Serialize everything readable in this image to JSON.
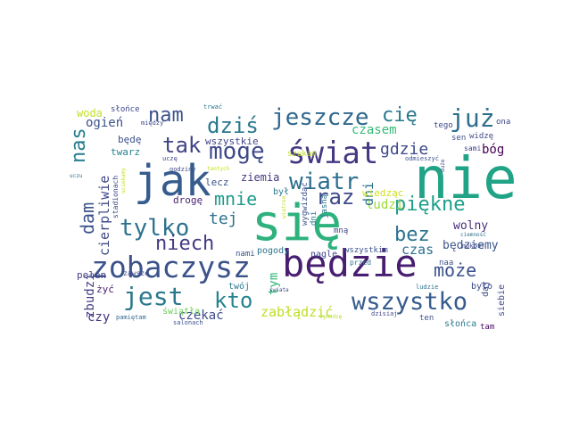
{
  "words": [
    {
      "text": "nie",
      "color": "#20a386"
    },
    {
      "text": "się",
      "color": "#2db27d"
    },
    {
      "text": "jak",
      "color": "#365c8d"
    },
    {
      "text": "będzie",
      "color": "#481f70"
    },
    {
      "text": "zobaczysz",
      "color": "#3b528b"
    },
    {
      "text": "świat",
      "color": "#453781"
    },
    {
      "text": "jeszcze",
      "color": "#31688e"
    },
    {
      "text": "wszystko",
      "color": "#365c8d"
    },
    {
      "text": "już",
      "color": "#2e6f8e"
    },
    {
      "text": "tylko",
      "color": "#2c728e"
    },
    {
      "text": "mogę",
      "color": "#3e4989"
    },
    {
      "text": "jest",
      "color": "#2a788e"
    },
    {
      "text": "dziś",
      "color": "#2a788e"
    },
    {
      "text": "wiatr",
      "color": "#2e6f8e"
    },
    {
      "text": "niech",
      "color": "#443983"
    },
    {
      "text": "piękne",
      "color": "#1f9e89"
    },
    {
      "text": "kto",
      "color": "#25838e"
    },
    {
      "text": "tak",
      "color": "#414487"
    },
    {
      "text": "nam",
      "color": "#3b528b"
    },
    {
      "text": "może",
      "color": "#3b528b"
    },
    {
      "text": "bez",
      "color": "#2c728e"
    },
    {
      "text": "gdzie",
      "color": "#3e4989"
    },
    {
      "text": "cię",
      "color": "#2a788e"
    },
    {
      "text": "raz",
      "color": "#3e4989"
    },
    {
      "text": "mnie",
      "color": "#1e9b8a"
    },
    {
      "text": "nas",
      "color": "#287d8e"
    },
    {
      "text": "dam",
      "color": "#3b528b"
    },
    {
      "text": "tej",
      "color": "#2c728e"
    },
    {
      "text": "zabłądzić",
      "color": "#bddf26"
    },
    {
      "text": "czasem",
      "color": "#38b977"
    },
    {
      "text": "cierpliwie",
      "color": "#3e4989"
    },
    {
      "text": "ludzi",
      "color": "#a0da39"
    },
    {
      "text": "czekać",
      "color": "#3e4989"
    },
    {
      "text": "czas",
      "color": "#2e6f8e"
    },
    {
      "text": "będziemy",
      "color": "#39568c"
    },
    {
      "text": "wolny",
      "color": "#472d7b"
    },
    {
      "text": "ogień",
      "color": "#3b528b"
    },
    {
      "text": "dni",
      "color": "#2c728e"
    },
    {
      "text": "tym",
      "color": "#32b67a"
    },
    {
      "text": "bóg",
      "color": "#440154"
    },
    {
      "text": "zbudzi",
      "color": "#433e85"
    },
    {
      "text": "czy",
      "color": "#46327e"
    },
    {
      "text": "woda",
      "color": "#c2df23"
    },
    {
      "text": "twarz",
      "color": "#26828e"
    },
    {
      "text": "będę",
      "color": "#3b528b"
    },
    {
      "text": "pełen",
      "color": "#433e85"
    },
    {
      "text": "ziemia",
      "color": "#453781"
    },
    {
      "text": "drogę",
      "color": "#481f70"
    },
    {
      "text": "lecz",
      "color": "#3b528b"
    },
    {
      "text": "wszystkie",
      "color": "#404688"
    },
    {
      "text": "słońca",
      "color": "#2a788e"
    },
    {
      "text": "żyć",
      "color": "#481f70"
    },
    {
      "text": "było",
      "color": "#3e4989"
    },
    {
      "text": "świątła",
      "color": "#6ccd5a"
    },
    {
      "text": "wiedząc",
      "color": "#d0e11c"
    },
    {
      "text": "twój",
      "color": "#2a788e"
    },
    {
      "text": "naa",
      "color": "#3b528b"
    },
    {
      "text": "nagle",
      "color": "#3e4989"
    },
    {
      "text": "pogody",
      "color": "#2c728e"
    },
    {
      "text": "nami",
      "color": "#3b528b"
    },
    {
      "text": "wszystkim",
      "color": "#3b528b"
    },
    {
      "text": "siebie",
      "color": "#3e4989"
    },
    {
      "text": "daj",
      "color": "#3e4989"
    },
    {
      "text": "tam",
      "color": "#46085c"
    },
    {
      "text": "ten",
      "color": "#3b528b"
    },
    {
      "text": "dni",
      "color": "#2c728e"
    },
    {
      "text": "mną",
      "color": "#3e4989"
    },
    {
      "text": "był",
      "color": "#2a788e"
    },
    {
      "text": "wygwizdać",
      "color": "#3b528b"
    },
    {
      "text": "jasną",
      "color": "#2c728e"
    },
    {
      "text": "słońce",
      "color": "#3e4989"
    },
    {
      "text": "szukam",
      "color": "#bddf26"
    },
    {
      "text": "sen",
      "color": "#3b528b"
    },
    {
      "text": "widzę",
      "color": "#3e4989"
    },
    {
      "text": "tego",
      "color": "#3e4989"
    },
    {
      "text": "ona",
      "color": "#3e4989"
    },
    {
      "text": "sami",
      "color": "#404688"
    },
    {
      "text": "stadionach",
      "color": "#404688"
    },
    {
      "text": "zawsze",
      "color": "#3e4989"
    },
    {
      "text": "pamiętam",
      "color": "#31688e"
    },
    {
      "text": "salonach",
      "color": "#3b528b"
    },
    {
      "text": "przed",
      "color": "#2c728e"
    },
    {
      "text": "ludzie",
      "color": "#2c728e"
    },
    {
      "text": "dzisiaj",
      "color": "#3e4989"
    },
    {
      "text": "mokoś",
      "color": "#3e4989"
    },
    {
      "text": "ciemność",
      "color": "#2c728e"
    },
    {
      "text": "twe",
      "color": "#3b528b"
    },
    {
      "text": "świata",
      "color": "#3e4989"
    },
    {
      "text": "wymodzę",
      "color": "#b5de2b"
    },
    {
      "text": "uczę",
      "color": "#3e4989"
    },
    {
      "text": "godziny",
      "color": "#3e4989"
    },
    {
      "text": "tantych",
      "color": "#c2df23"
    },
    {
      "text": "trwać",
      "color": "#2a788e"
    },
    {
      "text": "między",
      "color": "#3e4989"
    },
    {
      "text": "duże",
      "color": "#404688"
    },
    {
      "text": "odmieszyć",
      "color": "#3b528b"
    },
    {
      "text": "uczu",
      "color": "#2c728e"
    },
    {
      "text": "uciekamy",
      "color": "#c2df23"
    },
    {
      "text": "wiatrem",
      "color": "#c2df23"
    }
  ]
}
